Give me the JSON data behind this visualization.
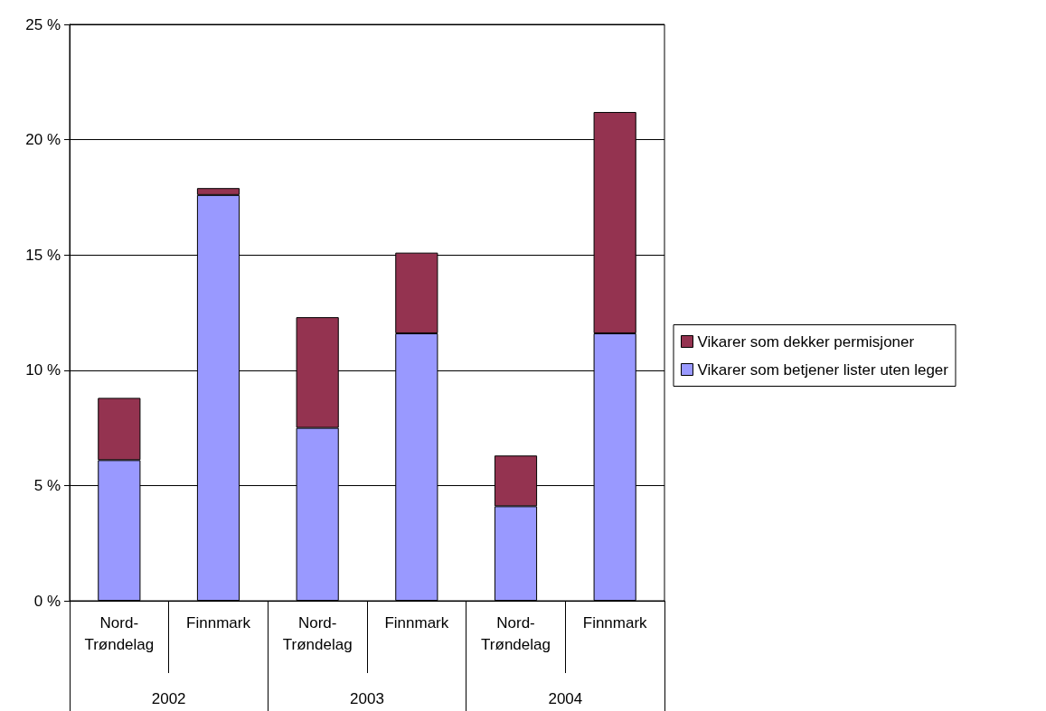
{
  "chart_data": {
    "type": "bar",
    "stacked": true,
    "categories": [
      "Nord-Trøndelag",
      "Finnmark",
      "Nord-Trøndelag",
      "Finnmark",
      "Nord-Trøndelag",
      "Finnmark"
    ],
    "annotations": [
      "2002",
      "2003",
      "2004"
    ],
    "series": [
      {
        "name": "Vikarer som betjener lister uten leger",
        "color": "#9999ff",
        "values": [
          6.1,
          17.6,
          7.5,
          11.6,
          4.1,
          11.6
        ]
      },
      {
        "name": "Vikarer som dekker permisjoner",
        "color": "#943350",
        "values": [
          2.7,
          0.3,
          4.8,
          3.5,
          2.2,
          9.6
        ]
      }
    ],
    "ylim": [
      0,
      25
    ],
    "yticks": [
      {
        "value": 0,
        "label": "0 %"
      },
      {
        "value": 5,
        "label": "5 %"
      },
      {
        "value": 10,
        "label": "10 %"
      },
      {
        "value": 15,
        "label": "15 %"
      },
      {
        "value": 20,
        "label": "20 %"
      },
      {
        "value": 25,
        "label": "25 %"
      }
    ],
    "grid": "y",
    "legend": "right"
  }
}
